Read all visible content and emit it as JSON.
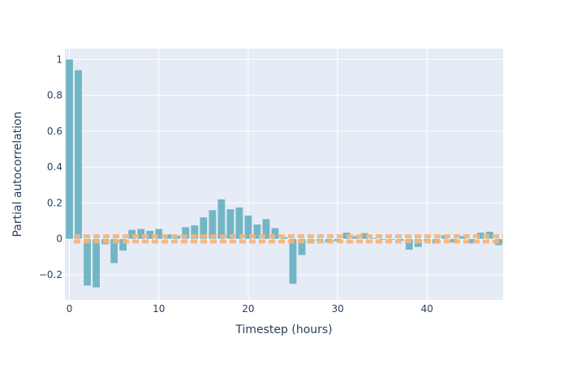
{
  "chart_data": {
    "type": "bar",
    "title": "",
    "xlabel": "Timestep (hours)",
    "ylabel": "Partial autocorrelation",
    "x": [
      0,
      1,
      2,
      3,
      4,
      5,
      6,
      7,
      8,
      9,
      10,
      11,
      12,
      13,
      14,
      15,
      16,
      17,
      18,
      19,
      20,
      21,
      22,
      23,
      24,
      25,
      26,
      27,
      28,
      29,
      30,
      31,
      32,
      33,
      34,
      35,
      36,
      37,
      38,
      39,
      40,
      41,
      42,
      43,
      44,
      45,
      46,
      47,
      48
    ],
    "series": [
      {
        "values": [
          1.0,
          0.94,
          -0.26,
          -0.27,
          -0.03,
          -0.135,
          -0.065,
          0.05,
          0.055,
          0.045,
          0.055,
          0.025,
          0.018,
          0.065,
          0.075,
          0.12,
          0.16,
          0.22,
          0.165,
          0.175,
          0.13,
          0.08,
          0.11,
          0.06,
          0.01,
          -0.25,
          -0.09,
          -0.025,
          -0.01,
          -0.02,
          -0.012,
          0.035,
          0.015,
          0.032,
          0.005,
          -0.005,
          -0.005,
          -0.01,
          -0.06,
          -0.045,
          -0.01,
          -0.025,
          0.02,
          -0.02,
          0.015,
          -0.025,
          0.035,
          0.04,
          -0.035
        ]
      }
    ],
    "confidence_band": [
      -0.02,
      0.02
    ],
    "xlim": [
      -0.5,
      48.5
    ],
    "ylim": [
      -0.34,
      1.06
    ],
    "xticks": [
      0,
      10,
      20,
      30,
      40
    ],
    "yticks": [
      -0.2,
      0,
      0.2,
      0.4,
      0.6,
      0.8,
      1
    ],
    "ytick_labels": [
      "−0.2",
      "0",
      "0.2",
      "0.4",
      "0.6",
      "0.8",
      "1"
    ],
    "grid": true,
    "colors": {
      "bar": "#6bb3c2",
      "band": "#f5b47a",
      "plot_bg": "#e5ecf6",
      "grid": "#ffffff",
      "text": "#2a3f5f"
    }
  }
}
